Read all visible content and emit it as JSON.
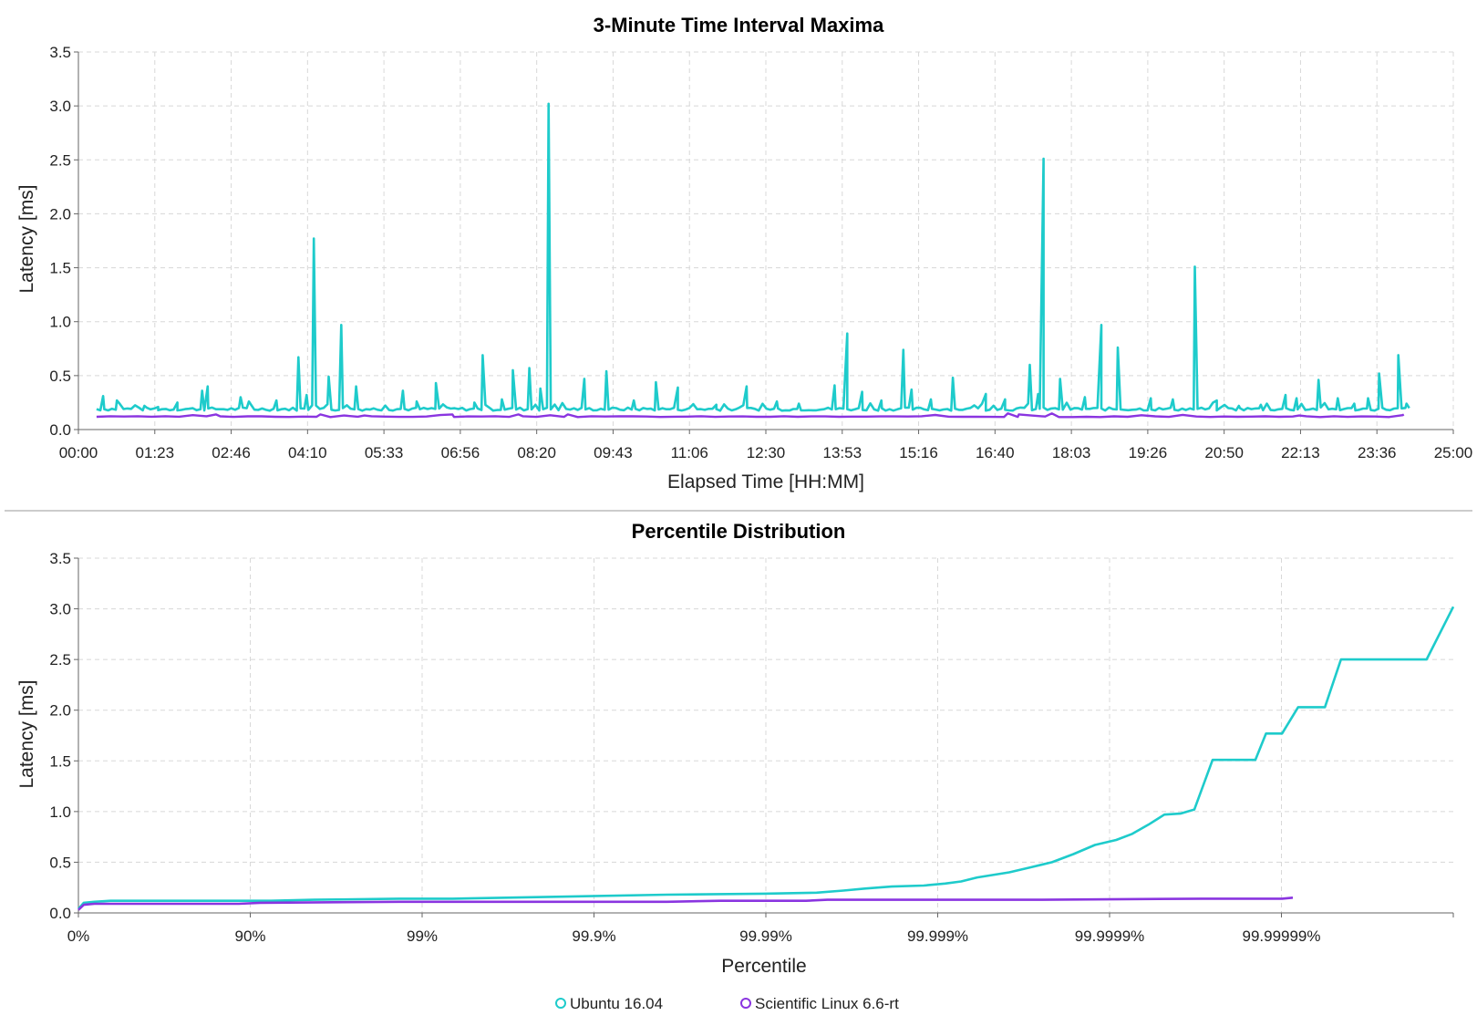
{
  "colors": {
    "ubuntu": "#1ecbcb",
    "scientific": "#8a35e0",
    "grid": "#d8d8d8",
    "axis": "#666666",
    "divider": "#bbbbbb"
  },
  "legend": {
    "ubuntu_label": "Ubuntu 16.04",
    "scientific_label": "Scientific Linux 6.6-rt",
    "placement": "bottom-center"
  },
  "chart_data": [
    {
      "type": "line",
      "title": "3-Minute Time Interval Maxima",
      "xlabel": "Elapsed Time [HH:MM]",
      "ylabel": "Latency [ms]",
      "xlim": [
        0,
        25
      ],
      "ylim": [
        0,
        3.5
      ],
      "grid": true,
      "xtick_labels": [
        "00:00",
        "01:23",
        "02:46",
        "04:10",
        "05:33",
        "06:56",
        "08:20",
        "09:43",
        "11:06",
        "12:30",
        "13:53",
        "15:16",
        "16:40",
        "18:03",
        "19:26",
        "20:50",
        "22:13",
        "23:36",
        "25:00"
      ],
      "yticks": [
        "0.0",
        "0.5",
        "1.0",
        "1.5",
        "2.0",
        "2.5",
        "3.0",
        "3.5"
      ],
      "series": [
        {
          "name": "Ubuntu 16.04",
          "baseline": 0.19,
          "x_end": 24.2,
          "peaks": [
            [
              0.45,
              0.31
            ],
            [
              0.7,
              0.27
            ],
            [
              1.2,
              0.22
            ],
            [
              1.45,
              0.21
            ],
            [
              1.8,
              0.25
            ],
            [
              2.25,
              0.36
            ],
            [
              2.35,
              0.4
            ],
            [
              2.95,
              0.3
            ],
            [
              3.1,
              0.26
            ],
            [
              3.6,
              0.27
            ],
            [
              4.0,
              0.67
            ],
            [
              4.15,
              0.32
            ],
            [
              4.28,
              1.77
            ],
            [
              4.55,
              0.49
            ],
            [
              4.78,
              0.97
            ],
            [
              5.05,
              0.4
            ],
            [
              5.9,
              0.36
            ],
            [
              6.15,
              0.26
            ],
            [
              6.5,
              0.43
            ],
            [
              7.2,
              0.25
            ],
            [
              7.35,
              0.69
            ],
            [
              7.7,
              0.28
            ],
            [
              7.9,
              0.55
            ],
            [
              8.2,
              0.57
            ],
            [
              8.4,
              0.38
            ],
            [
              8.55,
              3.02
            ],
            [
              9.2,
              0.47
            ],
            [
              9.6,
              0.54
            ],
            [
              10.1,
              0.27
            ],
            [
              10.5,
              0.44
            ],
            [
              10.9,
              0.39
            ],
            [
              11.6,
              0.23
            ],
            [
              12.15,
              0.4
            ],
            [
              12.7,
              0.26
            ],
            [
              13.1,
              0.24
            ],
            [
              13.75,
              0.41
            ],
            [
              13.98,
              0.89
            ],
            [
              14.25,
              0.35
            ],
            [
              14.6,
              0.27
            ],
            [
              15.0,
              0.74
            ],
            [
              15.15,
              0.37
            ],
            [
              15.5,
              0.28
            ],
            [
              15.9,
              0.48
            ],
            [
              16.5,
              0.33
            ],
            [
              16.85,
              0.28
            ],
            [
              17.3,
              0.6
            ],
            [
              17.45,
              0.33
            ],
            [
              17.55,
              2.51
            ],
            [
              17.85,
              0.47
            ],
            [
              18.3,
              0.3
            ],
            [
              18.6,
              0.97
            ],
            [
              18.9,
              0.76
            ],
            [
              19.5,
              0.29
            ],
            [
              19.9,
              0.28
            ],
            [
              20.3,
              1.51
            ],
            [
              20.7,
              0.27
            ],
            [
              21.1,
              0.22
            ],
            [
              21.5,
              0.23
            ],
            [
              21.95,
              0.32
            ],
            [
              22.15,
              0.29
            ],
            [
              22.55,
              0.46
            ],
            [
              22.9,
              0.29
            ],
            [
              23.2,
              0.24
            ],
            [
              23.45,
              0.29
            ],
            [
              23.65,
              0.52
            ],
            [
              24.0,
              0.69
            ],
            [
              24.15,
              0.24
            ]
          ]
        },
        {
          "name": "Scientific Linux 6.6-rt",
          "baseline": 0.12,
          "x_end": 24.2,
          "peaks": [
            [
              2.5,
              0.14
            ],
            [
              4.4,
              0.14
            ],
            [
              5.2,
              0.13
            ],
            [
              6.8,
              0.14
            ],
            [
              8.0,
              0.14
            ],
            [
              8.9,
              0.14
            ],
            [
              16.9,
              0.15
            ],
            [
              17.1,
              0.14
            ],
            [
              17.7,
              0.15
            ],
            [
              22.2,
              0.13
            ],
            [
              24.1,
              0.14
            ]
          ]
        }
      ]
    },
    {
      "type": "line",
      "title": "Percentile Distribution",
      "xlabel": "Percentile",
      "ylabel": "Latency [ms]",
      "ylim": [
        0,
        3.5
      ],
      "grid": true,
      "xtick_labels": [
        "0%",
        "90%",
        "99%",
        "99.9%",
        "99.99%",
        "99.999%",
        "99.9999%",
        "99.99999%"
      ],
      "x_unit_note": "x in nines of percentile: x = -log10(1 - p)",
      "yticks": [
        "0.0",
        "0.5",
        "1.0",
        "1.5",
        "2.0",
        "2.5",
        "3.0",
        "3.5"
      ],
      "series": [
        {
          "name": "Ubuntu 16.04",
          "points": [
            [
              0,
              0.04
            ],
            [
              0.05,
              0.1
            ],
            [
              0.15,
              0.11
            ],
            [
              0.3,
              0.12
            ],
            [
              1,
              0.12
            ],
            [
              1.8,
              0.12
            ],
            [
              2.2,
              0.13
            ],
            [
              3,
              0.14
            ],
            [
              3.5,
              0.14
            ],
            [
              4,
              0.15
            ],
            [
              5.5,
              0.18
            ],
            [
              6.4,
              0.19
            ],
            [
              6.9,
              0.2
            ],
            [
              7.15,
              0.22
            ],
            [
              7.35,
              0.24
            ],
            [
              7.6,
              0.26
            ],
            [
              7.9,
              0.27
            ],
            [
              8.1,
              0.29
            ],
            [
              8.25,
              0.31
            ],
            [
              8.4,
              0.35
            ],
            [
              8.7,
              0.4
            ],
            [
              8.9,
              0.45
            ],
            [
              9.1,
              0.5
            ],
            [
              9.3,
              0.58
            ],
            [
              9.5,
              0.67
            ],
            [
              9.7,
              0.72
            ],
            [
              9.85,
              0.78
            ],
            [
              10.0,
              0.87
            ],
            [
              10.15,
              0.97
            ],
            [
              10.3,
              0.98
            ],
            [
              10.43,
              1.02
            ],
            [
              10.6,
              1.51
            ],
            [
              10.75,
              1.51
            ],
            [
              11.0,
              1.51
            ],
            [
              11.1,
              1.77
            ],
            [
              11.25,
              1.77
            ],
            [
              11.4,
              2.03
            ],
            [
              11.5,
              2.03
            ],
            [
              11.65,
              2.03
            ],
            [
              11.8,
              2.5
            ],
            [
              12.6,
              2.5
            ],
            [
              12.85,
              3.02
            ]
          ]
        },
        {
          "name": "Scientific Linux 6.6-rt",
          "points": [
            [
              0,
              0.03
            ],
            [
              0.05,
              0.08
            ],
            [
              0.15,
              0.09
            ],
            [
              1,
              0.09
            ],
            [
              1.5,
              0.09
            ],
            [
              1.7,
              0.1
            ],
            [
              3,
              0.11
            ],
            [
              3.5,
              0.11
            ],
            [
              4,
              0.11
            ],
            [
              5.5,
              0.11
            ],
            [
              6,
              0.12
            ],
            [
              6.8,
              0.12
            ],
            [
              7,
              0.13
            ],
            [
              8,
              0.13
            ],
            [
              9,
              0.13
            ],
            [
              10.5,
              0.14
            ],
            [
              11,
              0.14
            ],
            [
              11.25,
              0.14
            ],
            [
              11.35,
              0.15
            ]
          ]
        }
      ]
    }
  ]
}
